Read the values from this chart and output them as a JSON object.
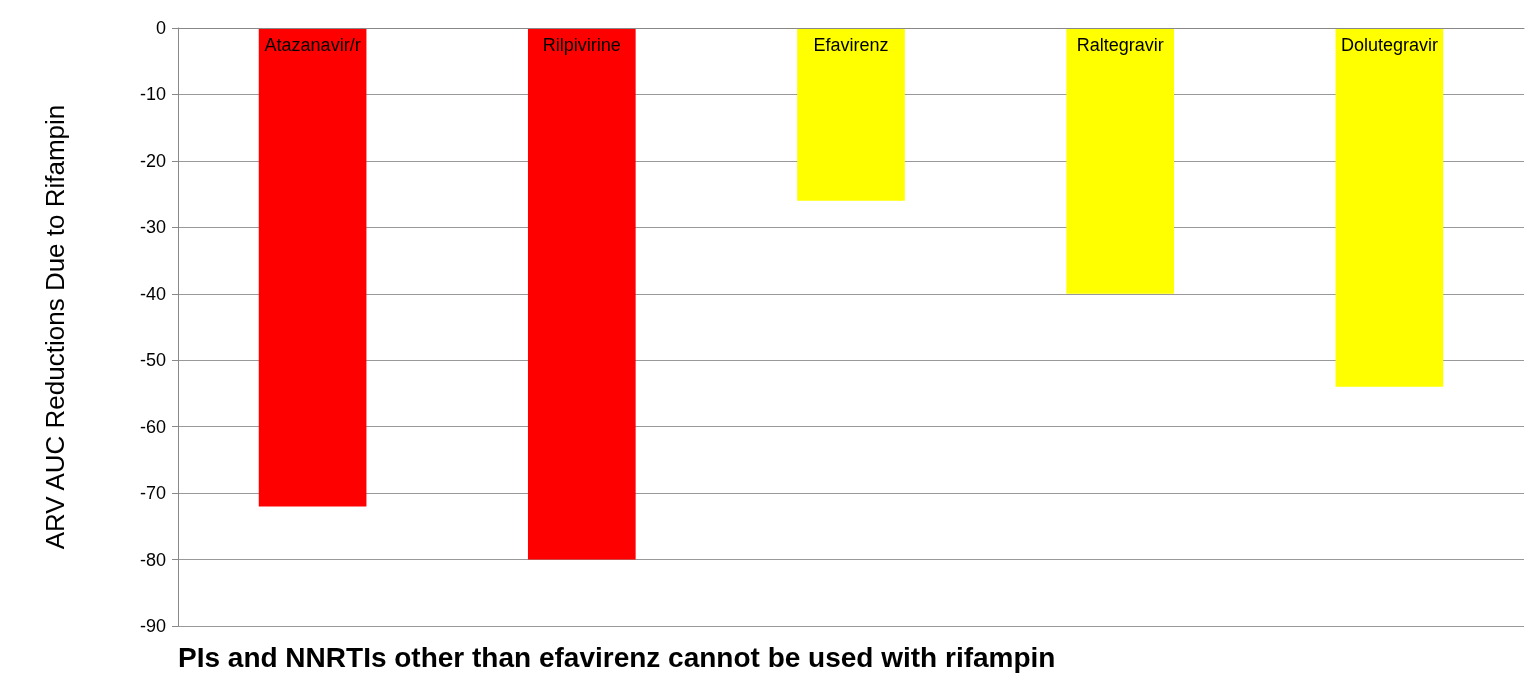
{
  "chart_data": {
    "type": "bar",
    "categories": [
      "Atazanavir/r",
      "Rilpivirine",
      "Efavirenz",
      "Raltegravir",
      "Dolutegravir"
    ],
    "values": [
      -72,
      -80,
      -26,
      -40,
      -54
    ],
    "colors": [
      "#ff0000",
      "#ff0000",
      "#ffff00",
      "#ffff00",
      "#ffff00"
    ],
    "ylabel": "ARV AUC Reductions Due to Rifampin",
    "ylim": [
      -90,
      0
    ],
    "yticks": [
      -90,
      -80,
      -70,
      -60,
      -50,
      -40,
      -30,
      -20,
      -10,
      0
    ],
    "grid": "y",
    "annotations": [
      "PIs and NNRTIs other than efavirenz cannot be used with rifampin"
    ]
  }
}
